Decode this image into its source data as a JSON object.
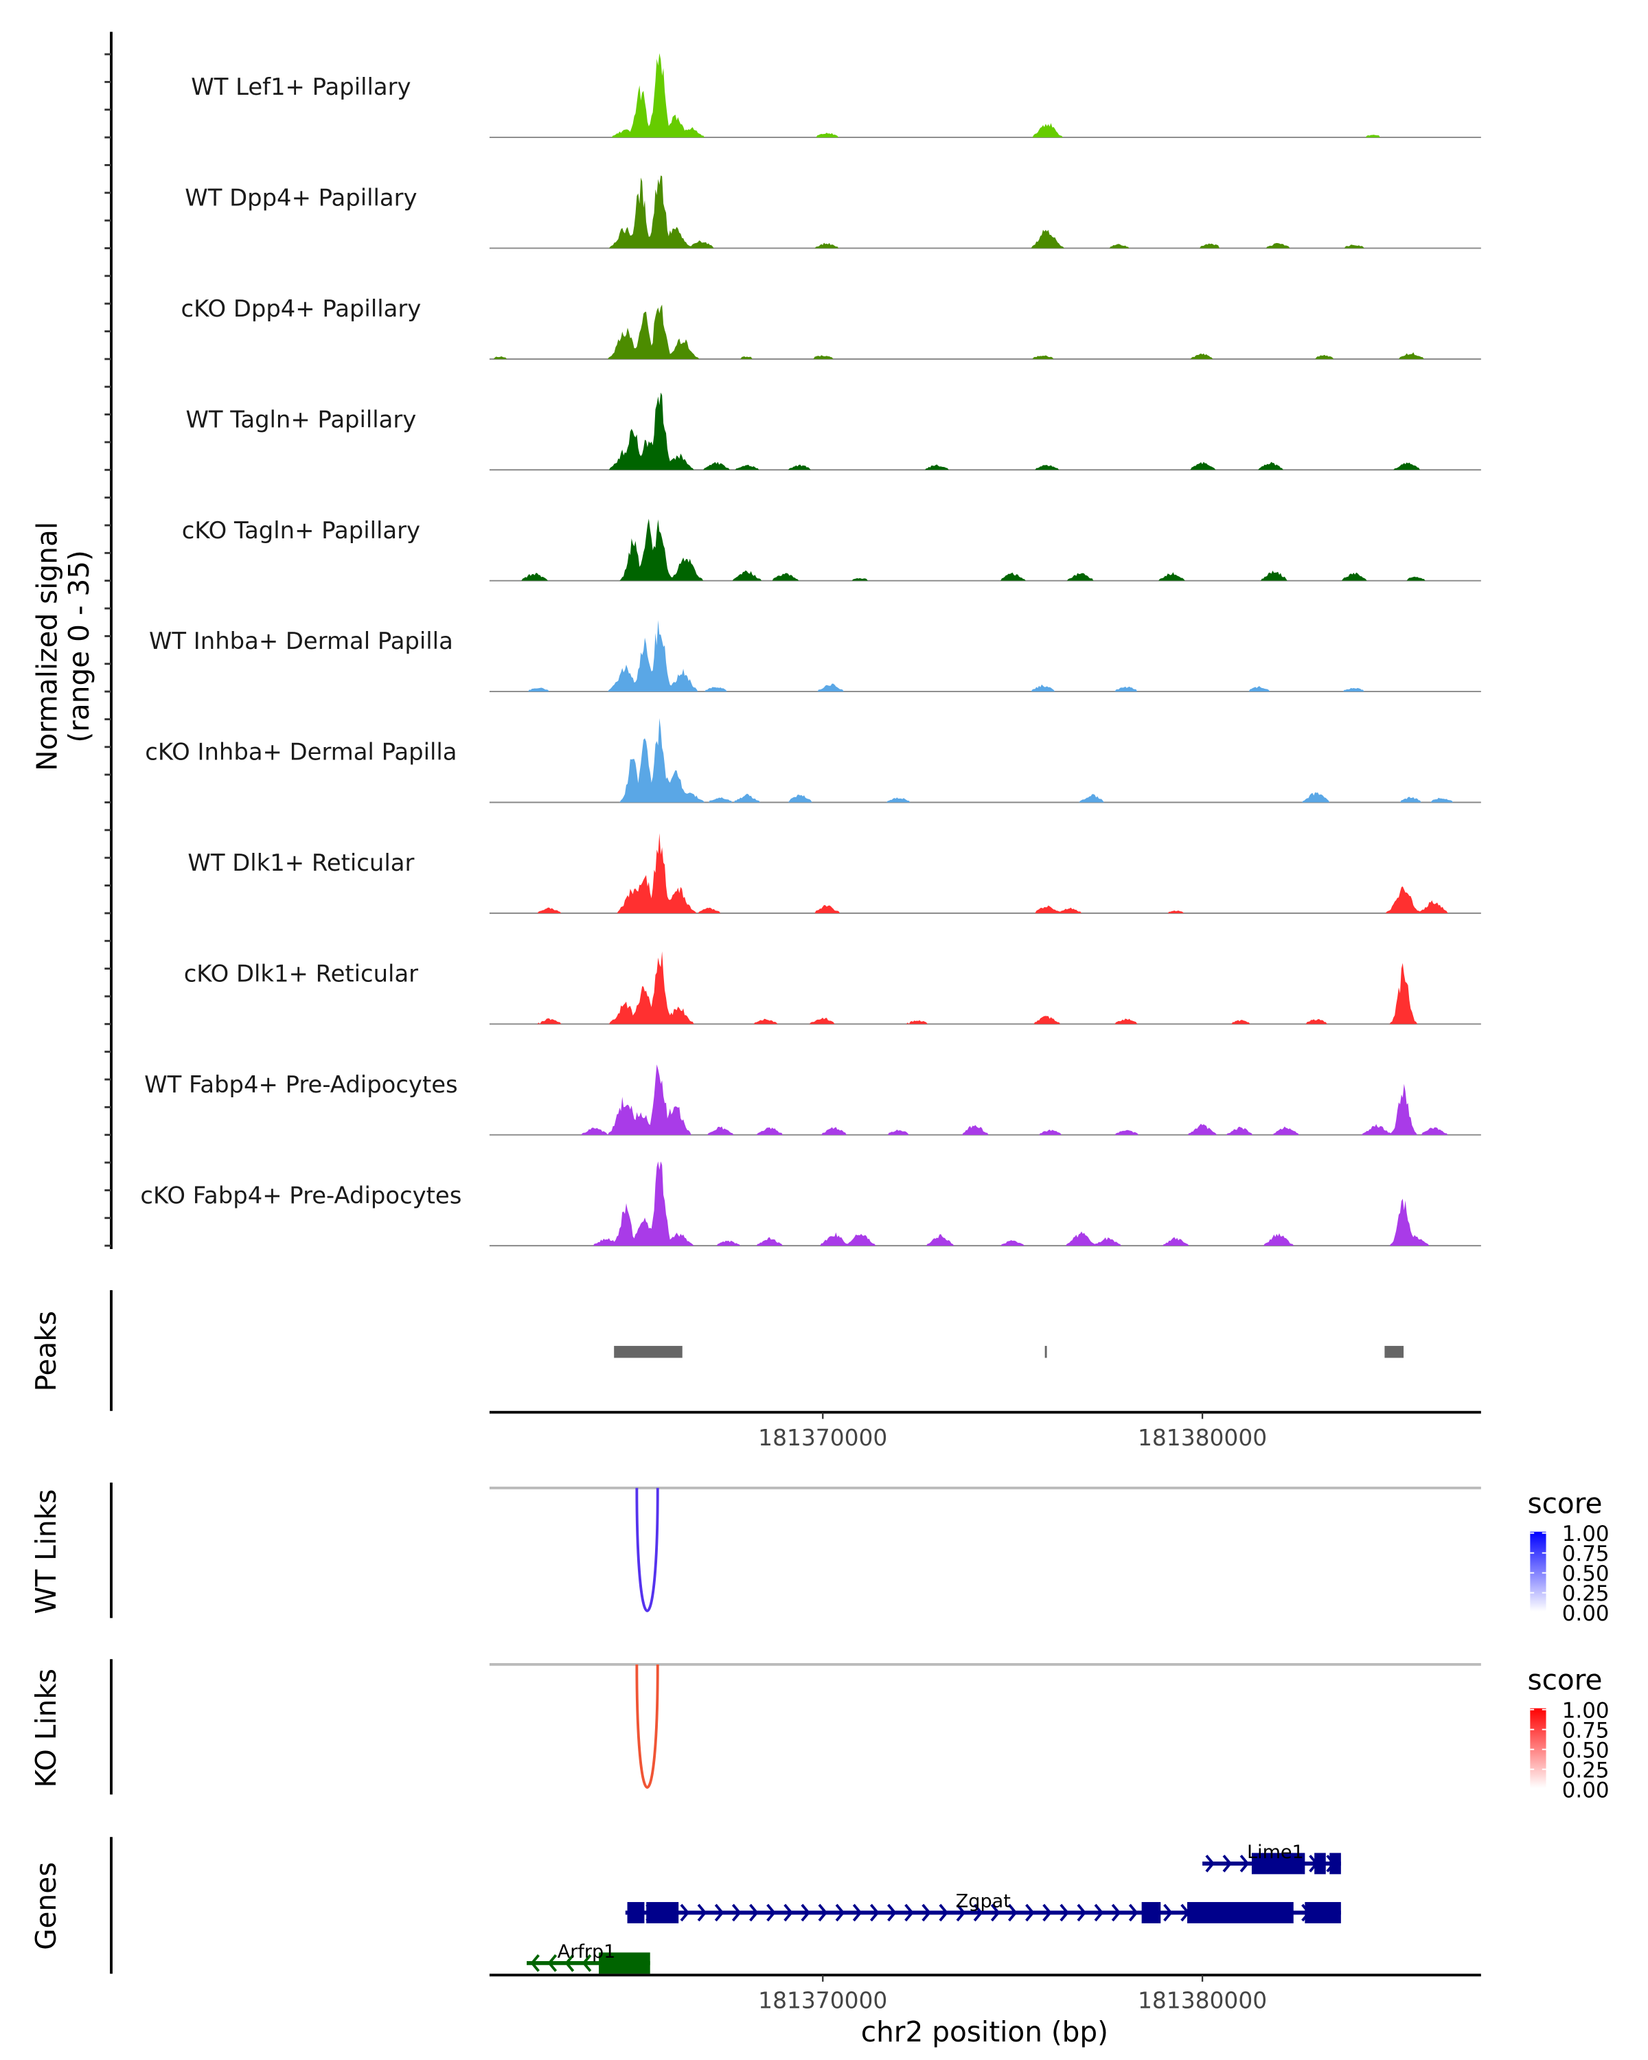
{
  "chart_data": {
    "type": "area",
    "title": "",
    "xlabel": "chr2 position (bp)",
    "ylabel": "Normalized signal\n(range 0 - 35)",
    "ylabel_lines": [
      "Normalized signal",
      "(range 0 - 35)"
    ],
    "ylim": [
      0,
      35
    ],
    "xlim": [
      181361220,
      181387340
    ],
    "x_ticks": [
      181370000,
      181380000
    ],
    "x_tick_labels": [
      "181370000",
      "181380000"
    ],
    "tracks": [
      {
        "name": "WT Lef1+ Papillary",
        "color": "#66CC00",
        "peaks": [
          [
            181364800,
            3
          ],
          [
            181365200,
            20
          ],
          [
            181365700,
            33
          ],
          [
            181366100,
            8
          ],
          [
            181366500,
            4
          ],
          [
            181370100,
            2
          ],
          [
            181375900,
            6
          ],
          [
            181384500,
            1
          ]
        ]
      },
      {
        "name": "WT Dpp4+ Papillary",
        "color": "#4C8C00",
        "peaks": [
          [
            181364800,
            8
          ],
          [
            181365200,
            25
          ],
          [
            181365700,
            32
          ],
          [
            181366100,
            8
          ],
          [
            181366800,
            3
          ],
          [
            181370100,
            2
          ],
          [
            181375900,
            8
          ],
          [
            181377800,
            1.5
          ],
          [
            181380200,
            2
          ],
          [
            181382000,
            2
          ],
          [
            181384000,
            1.5
          ]
        ]
      },
      {
        "name": "cKO Dpp4+ Papillary",
        "color": "#4C8C00",
        "peaks": [
          [
            181361500,
            1
          ],
          [
            181364800,
            12
          ],
          [
            181365300,
            18
          ],
          [
            181365700,
            24
          ],
          [
            181366300,
            8
          ],
          [
            181368000,
            1
          ],
          [
            181370000,
            1.5
          ],
          [
            181375800,
            1.5
          ],
          [
            181380000,
            2
          ],
          [
            181383200,
            1.5
          ],
          [
            181385500,
            2.5
          ]
        ]
      },
      {
        "name": "WT Tagln+ Papillary",
        "color": "#006400",
        "peaks": [
          [
            181364800,
            8
          ],
          [
            181365000,
            18
          ],
          [
            181365400,
            12
          ],
          [
            181365700,
            35
          ],
          [
            181366200,
            6
          ],
          [
            181367200,
            3
          ],
          [
            181368000,
            2
          ],
          [
            181369400,
            2
          ],
          [
            181373000,
            2
          ],
          [
            181375900,
            2
          ],
          [
            181380000,
            3
          ],
          [
            181381800,
            3
          ],
          [
            181385400,
            3
          ]
        ]
      },
      {
        "name": "cKO Tagln+ Papillary",
        "color": "#006400",
        "peaks": [
          [
            181362400,
            3
          ],
          [
            181365000,
            16
          ],
          [
            181365400,
            23
          ],
          [
            181365700,
            24
          ],
          [
            181366400,
            10
          ],
          [
            181368000,
            4
          ],
          [
            181369000,
            3
          ],
          [
            181371000,
            1
          ],
          [
            181375000,
            3
          ],
          [
            181376800,
            3
          ],
          [
            181379200,
            3
          ],
          [
            181381900,
            4
          ],
          [
            181384000,
            3
          ],
          [
            181385600,
            1.5
          ]
        ]
      },
      {
        "name": "WT Inhba+ Dermal Papilla",
        "color": "#5AA7E6",
        "peaks": [
          [
            181362500,
            1.5
          ],
          [
            181364800,
            10
          ],
          [
            181365300,
            20
          ],
          [
            181365700,
            30
          ],
          [
            181366300,
            8
          ],
          [
            181367200,
            2
          ],
          [
            181370200,
            3
          ],
          [
            181375800,
            2.5
          ],
          [
            181378000,
            2
          ],
          [
            181381500,
            2
          ],
          [
            181384000,
            1.5
          ]
        ]
      },
      {
        "name": "cKO Inhba+ Dermal Papilla",
        "color": "#5AA7E6",
        "peaks": [
          [
            181365000,
            18
          ],
          [
            181365300,
            24
          ],
          [
            181365700,
            32
          ],
          [
            181366100,
            12
          ],
          [
            181366500,
            4
          ],
          [
            181367300,
            2
          ],
          [
            181368000,
            3
          ],
          [
            181369400,
            3
          ],
          [
            181372000,
            2
          ],
          [
            181377100,
            3
          ],
          [
            181383000,
            4
          ],
          [
            181385500,
            2
          ],
          [
            181386300,
            2
          ]
        ]
      },
      {
        "name": "WT Dlk1+ Reticular",
        "color": "#FF3030",
        "peaks": [
          [
            181362800,
            2
          ],
          [
            181365000,
            10
          ],
          [
            181365300,
            18
          ],
          [
            181365700,
            32
          ],
          [
            181366200,
            10
          ],
          [
            181367000,
            2
          ],
          [
            181370100,
            3
          ],
          [
            181375900,
            3
          ],
          [
            181376500,
            2
          ],
          [
            181379300,
            1
          ],
          [
            181385300,
            10
          ],
          [
            181386100,
            5
          ]
        ]
      },
      {
        "name": "cKO Dlk1+ Reticular",
        "color": "#FF3030",
        "peaks": [
          [
            181362800,
            2
          ],
          [
            181364800,
            8
          ],
          [
            181365300,
            14
          ],
          [
            181365700,
            30
          ],
          [
            181366200,
            7
          ],
          [
            181368500,
            2
          ],
          [
            181370000,
            2.5
          ],
          [
            181372500,
            1.5
          ],
          [
            181375900,
            3
          ],
          [
            181378000,
            2
          ],
          [
            181381000,
            1.5
          ],
          [
            181383000,
            2
          ],
          [
            181385300,
            22
          ]
        ]
      },
      {
        "name": "WT Fabp4+ Pre-Adipocytes",
        "color": "#A93BE8",
        "peaks": [
          [
            181364000,
            3
          ],
          [
            181364800,
            15
          ],
          [
            181365200,
            10
          ],
          [
            181365700,
            29
          ],
          [
            181366100,
            12
          ],
          [
            181367300,
            3
          ],
          [
            181368600,
            3
          ],
          [
            181370300,
            3
          ],
          [
            181372000,
            2
          ],
          [
            181374000,
            4
          ],
          [
            181376000,
            2
          ],
          [
            181378000,
            2
          ],
          [
            181380000,
            4
          ],
          [
            181381000,
            3
          ],
          [
            181382200,
            3
          ],
          [
            181384600,
            4
          ],
          [
            181385300,
            20
          ],
          [
            181386100,
            3
          ]
        ]
      },
      {
        "name": "cKO Fabp4+ Pre-Adipocytes",
        "color": "#A93BE8",
        "peaks": [
          [
            181364300,
            3
          ],
          [
            181364800,
            16
          ],
          [
            181365300,
            10
          ],
          [
            181365700,
            35
          ],
          [
            181366200,
            5
          ],
          [
            181367500,
            2
          ],
          [
            181368600,
            3
          ],
          [
            181370300,
            5
          ],
          [
            181371000,
            5
          ],
          [
            181373100,
            4
          ],
          [
            181375000,
            2
          ],
          [
            181376800,
            5
          ],
          [
            181377500,
            3
          ],
          [
            181379300,
            3
          ],
          [
            181382000,
            5
          ],
          [
            181385300,
            18
          ],
          [
            181385600,
            4
          ]
        ]
      }
    ],
    "peaks_track": {
      "label": "Peaks",
      "color": "#666666",
      "regions": [
        [
          181364500,
          181366300
        ],
        [
          181375850,
          181375900
        ],
        [
          181384800,
          181385300
        ]
      ]
    },
    "links_tracks": [
      {
        "label": "WT Links",
        "color": "#5533EE",
        "links": [
          {
            "start": 181365100,
            "end": 181365650,
            "score": 0.8
          }
        ],
        "legend": {
          "title": "score",
          "low_color": "#FFFFFF",
          "high_color": "#0000FF",
          "ticks": [
            "1.00",
            "0.75",
            "0.50",
            "0.25",
            "0.00"
          ]
        }
      },
      {
        "label": "KO Links",
        "color": "#F05535",
        "links": [
          {
            "start": 181365100,
            "end": 181365650,
            "score": 0.75
          }
        ],
        "legend": {
          "title": "score",
          "low_color": "#FFFFFF",
          "high_color": "#FF0000",
          "ticks": [
            "1.00",
            "0.75",
            "0.50",
            "0.25",
            "0.00"
          ]
        }
      }
    ],
    "genes_track": {
      "label": "Genes",
      "genes": [
        {
          "name": "Lime1",
          "strand": "+",
          "color": "#00008B",
          "row": 0,
          "start": 181380000,
          "end": 181383650,
          "exons": [
            [
              181381300,
              181382700
            ],
            [
              181382950,
              181383250
            ],
            [
              181383350,
              181383650
            ]
          ]
        },
        {
          "name": "Zgpat",
          "strand": "+",
          "color": "#00008B",
          "row": 1,
          "start": 181364800,
          "end": 181383650,
          "exons": [
            [
              181364850,
              181365300
            ],
            [
              181365350,
              181366200
            ],
            [
              181378400,
              181378900
            ],
            [
              181379600,
              181382400
            ],
            [
              181382700,
              181383650
            ]
          ]
        },
        {
          "name": "Arfrp1",
          "strand": "-",
          "color": "#006400",
          "row": 2,
          "start": 181362200,
          "end": 181365450,
          "exons": [
            [
              181364100,
              181365450
            ]
          ]
        }
      ]
    }
  }
}
